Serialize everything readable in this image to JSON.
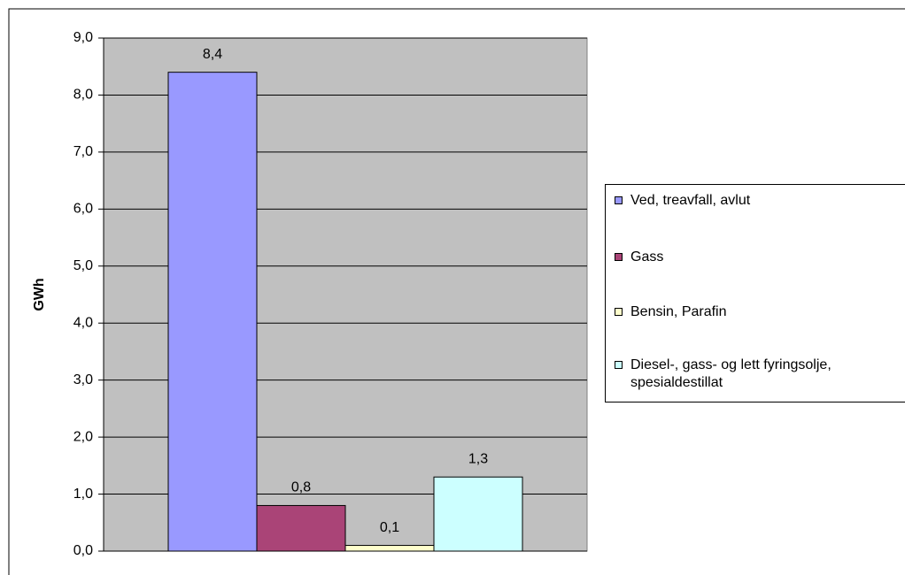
{
  "chart_data": {
    "type": "bar",
    "y_label": "GWh",
    "categories": [
      null
    ],
    "series": [
      {
        "name": "Ved, treavfall, avlut",
        "color": "#9999ff",
        "values": [
          8.4
        ],
        "value_labels": [
          "8,4"
        ]
      },
      {
        "name": "Gass",
        "color": "#aa4477",
        "values": [
          0.8
        ],
        "value_labels": [
          "0,8"
        ]
      },
      {
        "name": "Bensin, Parafin",
        "color": "#ffffcc",
        "values": [
          0.1
        ],
        "value_labels": [
          "0,1"
        ]
      },
      {
        "name": "Diesel-, gass- og lett fyringsolje, spesialdestillat",
        "color": "#ccffff",
        "values": [
          1.3
        ],
        "value_labels": [
          "1,3"
        ]
      }
    ],
    "ylim": [
      0,
      9
    ],
    "yticks": [
      {
        "value": 0,
        "label": "0,0"
      },
      {
        "value": 1,
        "label": "1,0"
      },
      {
        "value": 2,
        "label": "2,0"
      },
      {
        "value": 3,
        "label": "3,0"
      },
      {
        "value": 4,
        "label": "4,0"
      },
      {
        "value": 5,
        "label": "5,0"
      },
      {
        "value": 6,
        "label": "6,0"
      },
      {
        "value": 7,
        "label": "7,0"
      },
      {
        "value": 8,
        "label": "8,0"
      },
      {
        "value": 9,
        "label": "9,0"
      }
    ],
    "grid": true,
    "legend": "right"
  }
}
